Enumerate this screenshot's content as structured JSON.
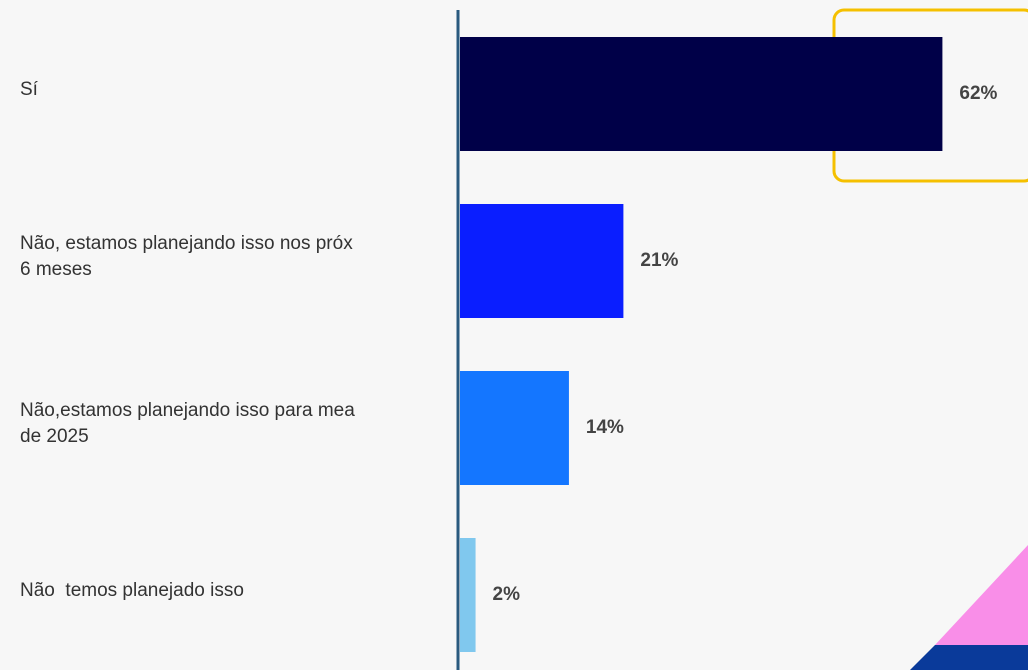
{
  "chart_data": {
    "type": "bar",
    "orientation": "horizontal",
    "categories": [
      "Sí",
      "Não, estamos planejando isso nos próx\n6 meses",
      "Não,estamos planejando isso para mea\nde 2025",
      "Não  temos planejado isso"
    ],
    "values": [
      62,
      21,
      14,
      2
    ],
    "value_labels": [
      "62%",
      "21%",
      "14%",
      "2%"
    ],
    "colors": [
      "#000048",
      "#0a1eff",
      "#1476ff",
      "#80c8ee"
    ],
    "xlim": [
      0,
      73
    ]
  }
}
